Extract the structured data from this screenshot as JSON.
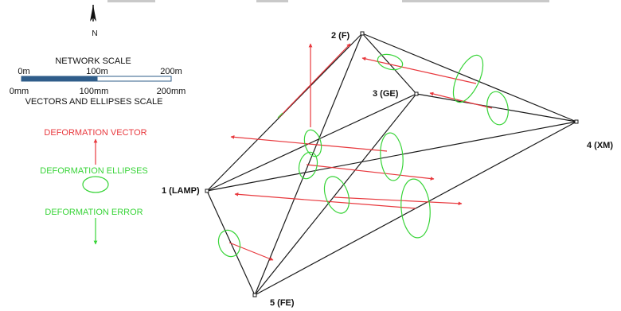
{
  "north": {
    "label": "N"
  },
  "scale": {
    "network_title": "NETWORK SCALE",
    "network_ticks": [
      "0m",
      "100m",
      "200m"
    ],
    "vector_ticks": [
      "0mm",
      "100mm",
      "200mm"
    ],
    "vector_title": "VECTORS AND ELLIPSES SCALE"
  },
  "legend": {
    "vector_label": "DEFORMATION VECTOR",
    "ellipse_label": "DEFORMATION ELLIPSES",
    "error_label": "DEFORMATION ERROR"
  },
  "points": [
    {
      "id": "lamp",
      "label": "1 (LAMP)"
    },
    {
      "id": "f",
      "label": "2 (F)"
    },
    {
      "id": "ge",
      "label": "3 (GE)"
    },
    {
      "id": "xm",
      "label": "4 (XM)"
    },
    {
      "id": "fe",
      "label": "5 (FE)"
    }
  ],
  "colors": {
    "network": "#1a1a1a",
    "vector": "#e8383d",
    "ellipse": "#38d438",
    "scale_dark": "#2f5d8a",
    "scale_light": "#ffffff"
  }
}
